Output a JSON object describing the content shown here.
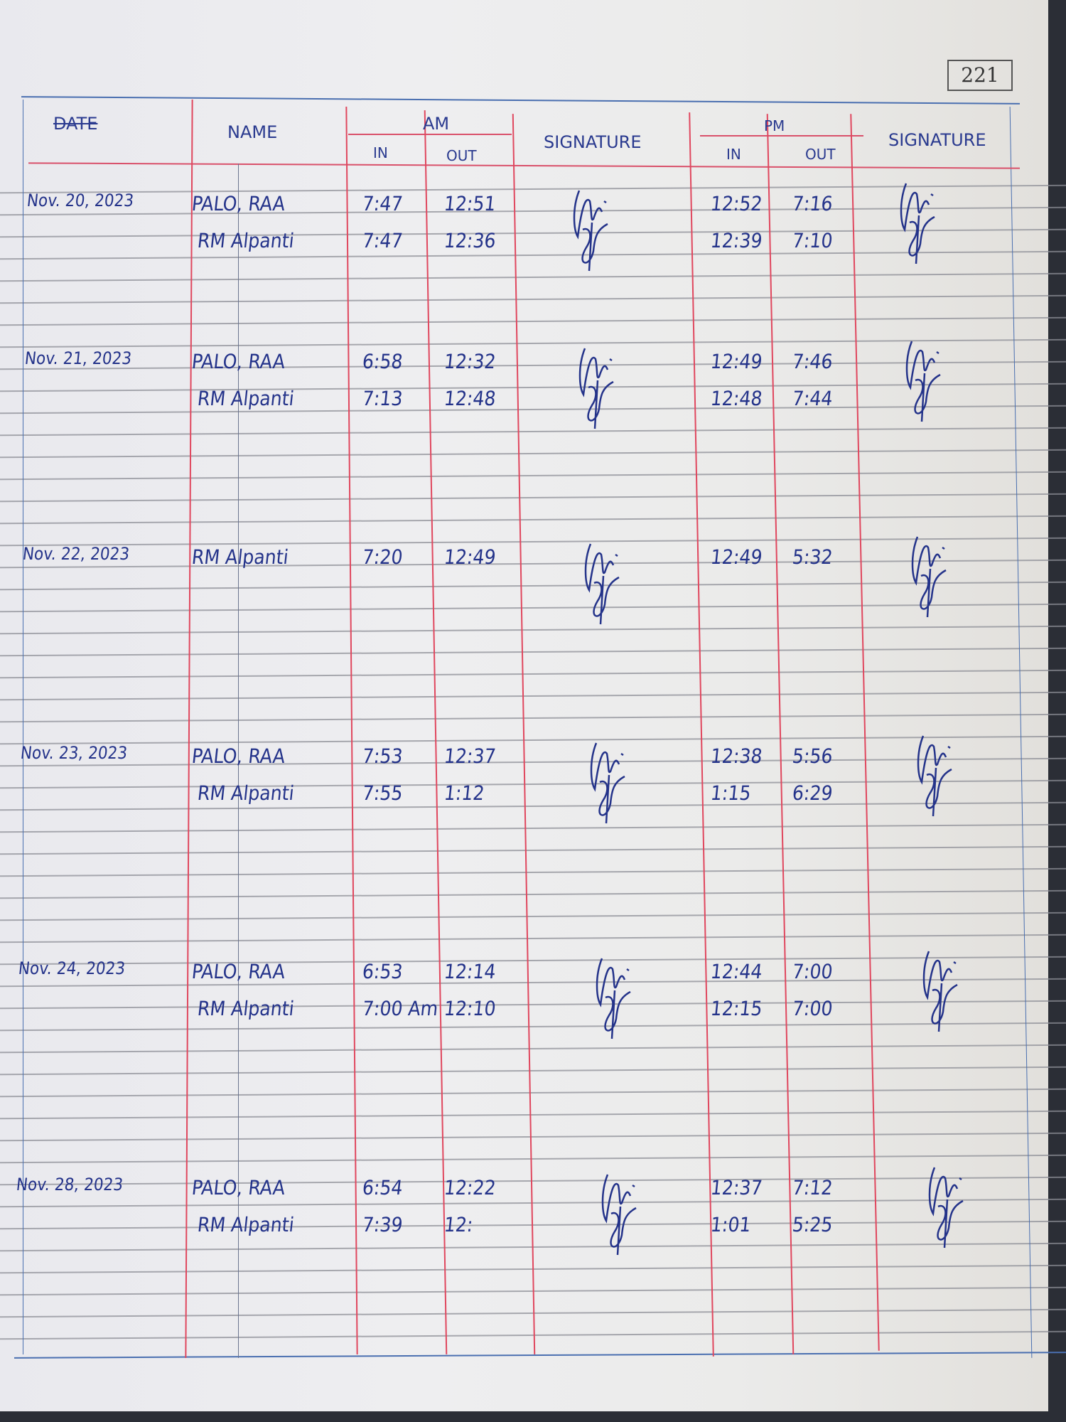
{
  "page_number": "221",
  "header": {
    "date": "DATE",
    "name": "NAME",
    "am": "AM",
    "pm": "PM",
    "in": "IN",
    "out": "OUT",
    "signature": "SIGNATURE"
  },
  "entries": [
    {
      "date": "Nov. 20, 2023",
      "rows": [
        {
          "name": "PALO, RAA",
          "am_in": "7:47",
          "am_out": "12:51",
          "pm_in": "12:52",
          "pm_out": "7:16"
        },
        {
          "name": "RM Alpanti",
          "am_in": "7:47",
          "am_out": "12:36",
          "pm_in": "12:39",
          "pm_out": "7:10"
        }
      ]
    },
    {
      "date": "Nov. 21, 2023",
      "rows": [
        {
          "name": "PALO, RAA",
          "am_in": "6:58",
          "am_out": "12:32",
          "pm_in": "12:49",
          "pm_out": "7:46"
        },
        {
          "name": "RM Alpanti",
          "am_in": "7:13",
          "am_out": "12:48",
          "pm_in": "12:48",
          "pm_out": "7:44"
        }
      ]
    },
    {
      "date": "Nov. 22, 2023",
      "rows": [
        {
          "name": "RM Alpanti",
          "am_in": "7:20",
          "am_out": "12:49",
          "pm_in": "12:49",
          "pm_out": "5:32"
        }
      ]
    },
    {
      "date": "Nov. 23, 2023",
      "rows": [
        {
          "name": "PALO, RAA",
          "am_in": "7:53",
          "am_out": "12:37",
          "pm_in": "12:38",
          "pm_out": "5:56"
        },
        {
          "name": "RM Alpanti",
          "am_in": "7:55",
          "am_out": "1:12",
          "pm_in": "1:15",
          "pm_out": "6:29"
        }
      ]
    },
    {
      "date": "Nov. 24, 2023",
      "rows": [
        {
          "name": "PALO, RAA",
          "am_in": "6:53",
          "am_out": "12:14",
          "pm_in": "12:44",
          "pm_out": "7:00"
        },
        {
          "name": "RM Alpanti",
          "am_in": "7:00 Am",
          "am_out": "12:10",
          "pm_in": "12:15",
          "pm_out": "7:00"
        }
      ]
    },
    {
      "date": "Nov. 28, 2023",
      "rows": [
        {
          "name": "PALO, RAA",
          "am_in": "6:54",
          "am_out": "12:22",
          "pm_in": "12:37",
          "pm_out": "7:12"
        },
        {
          "name": "RM Alpanti",
          "am_in": "7:39",
          "am_out": "12:",
          "pm_in": "1:01",
          "pm_out": "5:25"
        }
      ]
    }
  ],
  "colors": {
    "ink": "#24338a",
    "margin_red": "#e0475e",
    "rule_gray": "#8d8f97"
  }
}
